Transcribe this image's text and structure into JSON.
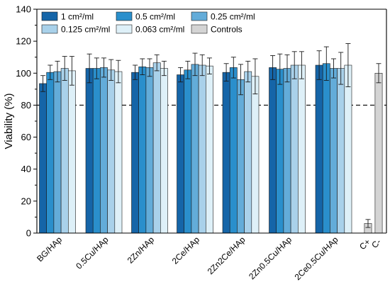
{
  "chart_data": {
    "type": "bar",
    "title": "",
    "xlabel": "",
    "ylabel": "Viability (%)",
    "ylim": [
      0,
      140
    ],
    "yticks": [
      0,
      20,
      40,
      60,
      80,
      100,
      120,
      140
    ],
    "reference_line": {
      "value": 80,
      "style": "dashed"
    },
    "grid": false,
    "legend_placement": "top-left",
    "categories": [
      "BG/HAp",
      "0.5Cu/HAp",
      "2Zn/HAp",
      "2Ce/HAp",
      "2Zn2Ce/HAp",
      "2Zn0.5Cu/HAp",
      "2Ce0.5Cu/HAp"
    ],
    "series": [
      {
        "name": "1 cm²/ml",
        "color": "#1565a8",
        "values": [
          93.5,
          103.0,
          100.5,
          99.0,
          100.5,
          103.5,
          105.0
        ],
        "errors": [
          5,
          9,
          4.5,
          4.5,
          5.5,
          7.5,
          9
        ]
      },
      {
        "name": "0.5 cm²/ml",
        "color": "#2a8fcc",
        "values": [
          100.5,
          103.0,
          104.0,
          102.0,
          103.5,
          102.5,
          106.0
        ],
        "errors": [
          4.5,
          6.5,
          5,
          5.5,
          6.5,
          9.5,
          10.5
        ]
      },
      {
        "name": "0.25 cm²/ml",
        "color": "#63acd9",
        "values": [
          101.0,
          103.5,
          103.5,
          105.5,
          96.0,
          103.0,
          103.0
        ],
        "errors": [
          6.5,
          6,
          5.5,
          7,
          9.5,
          8.5,
          6
        ]
      },
      {
        "name": "0.125 cm²/ml",
        "color": "#a9d1ea",
        "values": [
          103.0,
          102.0,
          106.5,
          105.0,
          101.0,
          105.0,
          103.0
        ],
        "errors": [
          7.5,
          6.5,
          5,
          6.5,
          6.5,
          8.5,
          10
        ]
      },
      {
        "name": "0.063 cm²/ml",
        "color": "#def0f8",
        "values": [
          101.5,
          101.0,
          103.0,
          104.5,
          98.0,
          105.0,
          105.0
        ],
        "errors": [
          9,
          7,
          4.5,
          5,
          11,
          8.5,
          13.5
        ]
      }
    ],
    "controls": {
      "name": "Controls",
      "color": "#d4d4d4",
      "categories": [
        "C+",
        "C-"
      ],
      "values": [
        6.0,
        100.0
      ],
      "errors": [
        2.5,
        6
      ]
    }
  }
}
